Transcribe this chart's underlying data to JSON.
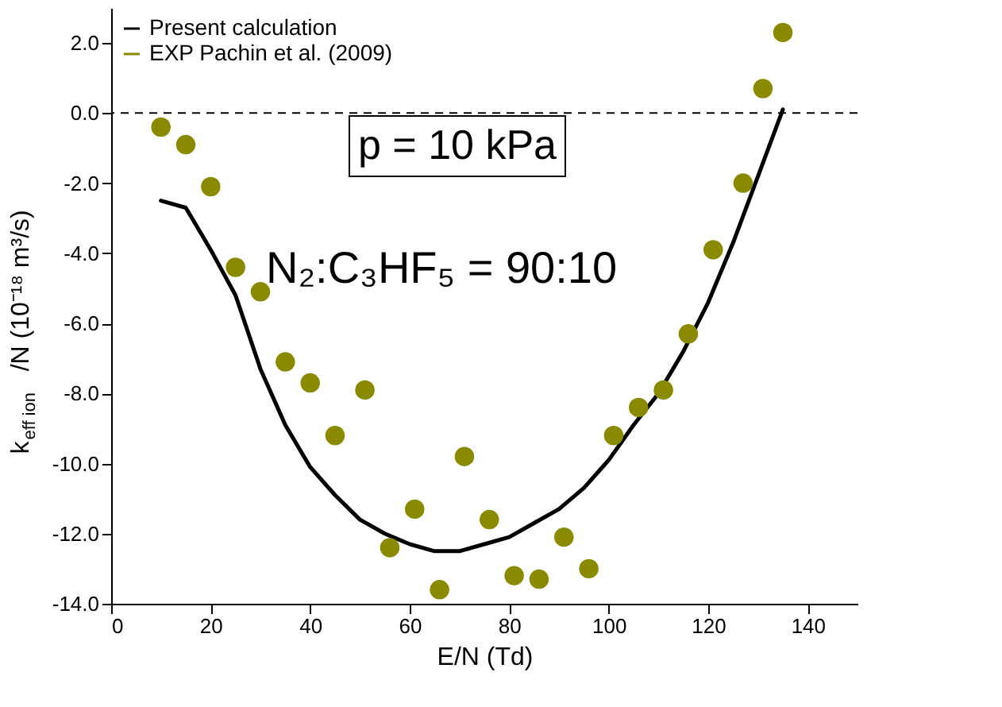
{
  "chart_data": {
    "type": "line",
    "xlabel": "E/N (Td)",
    "ylabel": "k$_{eff ion}$/N (10⁻¹⁸ m³/s)",
    "xlim": [
      0,
      150
    ],
    "ylim": [
      -14,
      3
    ],
    "xticks": [
      0,
      20,
      40,
      60,
      80,
      100,
      120,
      140
    ],
    "yticks": [
      {
        "value": -14,
        "label": "-14.0"
      },
      {
        "value": -12,
        "label": "-12.0"
      },
      {
        "value": -10,
        "label": "-10.0"
      },
      {
        "value": -8,
        "label": "-8.0"
      },
      {
        "value": -6,
        "label": "-6.0"
      },
      {
        "value": -4,
        "label": "-4.0"
      },
      {
        "value": -2,
        "label": "-2.0"
      },
      {
        "value": 0,
        "label": "0.0"
      },
      {
        "value": 2,
        "label": "2.0"
      }
    ],
    "series": [
      {
        "name": "Present calculation",
        "type": "line",
        "color": "#000000",
        "marker": "none",
        "line_style": "solid",
        "x": [
          10,
          15,
          20,
          25,
          30,
          35,
          40,
          45,
          50,
          55,
          60,
          65,
          70,
          75,
          80,
          85,
          90,
          95,
          100,
          105,
          110,
          115,
          120,
          125,
          130,
          135
        ],
        "values": [
          -2.5,
          -2.7,
          -3.9,
          -5.2,
          -7.3,
          -8.9,
          -10.1,
          -10.9,
          -11.6,
          -12.0,
          -12.3,
          -12.5,
          -12.5,
          -12.3,
          -12.1,
          -11.7,
          -11.3,
          -10.7,
          -9.9,
          -8.9,
          -8.0,
          -6.8,
          -5.4,
          -3.7,
          -1.8,
          0.1
        ]
      },
      {
        "name": "EXP Pachin et al. (2009)",
        "type": "scatter",
        "color": "#8a8a00",
        "marker": "circle",
        "x": [
          10,
          15,
          20,
          25,
          30,
          35,
          40,
          45,
          51,
          56,
          61,
          66,
          71,
          76,
          81,
          86,
          91,
          96,
          101,
          106,
          111,
          116,
          121,
          127,
          131,
          135
        ],
        "values": [
          -0.4,
          -0.9,
          -2.1,
          -4.4,
          -5.1,
          -7.1,
          -7.7,
          -9.2,
          -7.9,
          -12.4,
          -11.3,
          -13.6,
          -9.8,
          -11.6,
          -13.2,
          -13.3,
          -12.1,
          -13.0,
          -9.2,
          -8.4,
          -7.9,
          -6.3,
          -3.9,
          -2.0,
          0.7,
          2.3
        ]
      }
    ],
    "ref_lines": [
      {
        "axis": "y",
        "value": 0,
        "line_style": "dashed",
        "color": "#000000"
      }
    ],
    "annotations": [
      "p = 10 kPa",
      "N₂:C₃HF₅ = 90:10"
    ],
    "legend": "top left",
    "grid": false
  }
}
